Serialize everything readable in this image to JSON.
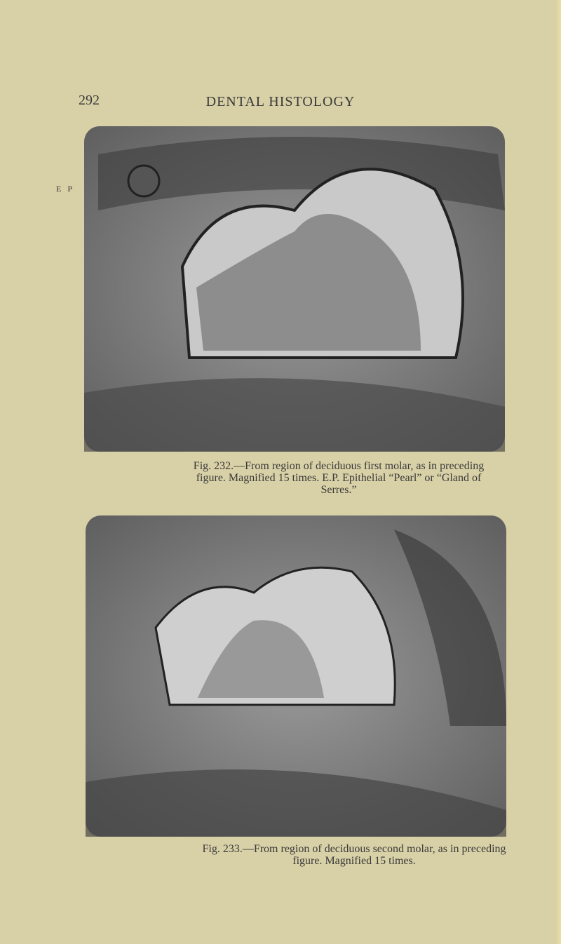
{
  "header": {
    "page_number": "292",
    "title": "DENTAL HISTOLOGY"
  },
  "figures": [
    {
      "side_label": "E P",
      "caption": "Fig. 232.—From region of deciduous first molar, as in preceding figure. Magnified 15 times. E.P. Epithelial “Pearl” or “Gland of Serres.”"
    },
    {
      "caption": "Fig. 233.—From region of deciduous second molar, as in preceding figure. Magnified 15 times."
    }
  ]
}
